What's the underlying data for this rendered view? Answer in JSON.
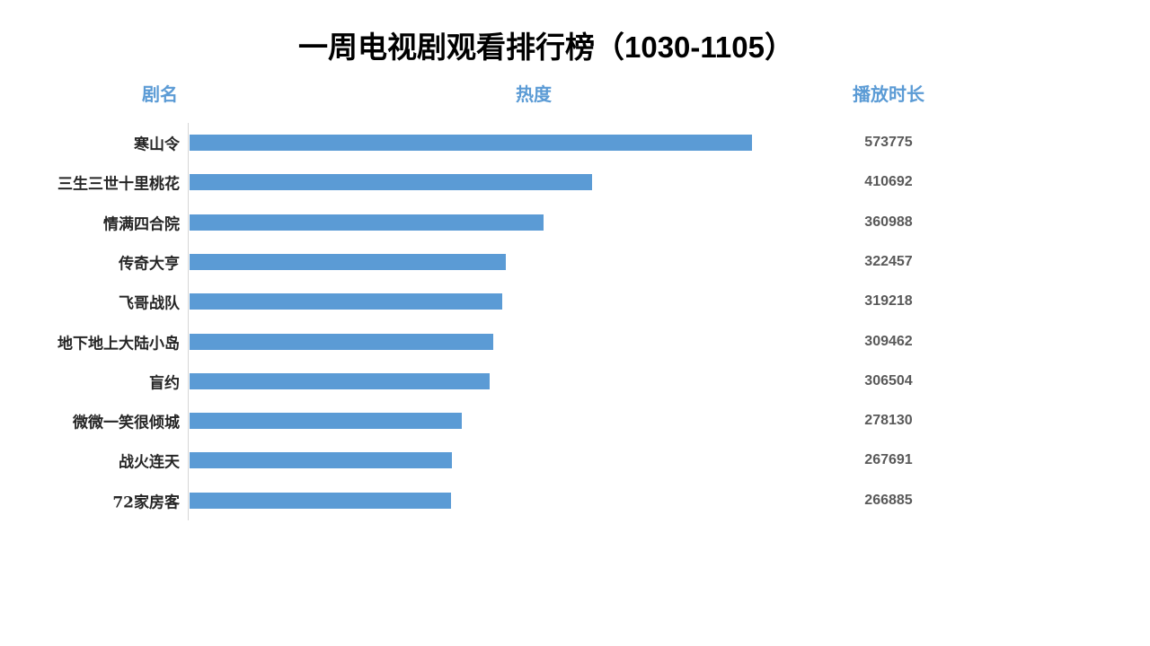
{
  "title": "一周电视剧观看排行榜（1030-1105）",
  "columns": {
    "name": "剧名",
    "heat": "热度",
    "duration": "播放时长"
  },
  "colors": {
    "bar": "#5B9BD5",
    "header_text": "#5B9BD5",
    "value_text": "#595959",
    "axis_line": "#D6D6D6",
    "title_text": "#000000",
    "background": "#FFFFFF"
  },
  "chart_data": {
    "type": "bar",
    "orientation": "horizontal",
    "title": "一周电视剧观看排行榜（1030-1105）",
    "xlabel": "热度",
    "ylabel": "剧名",
    "value_column_label": "播放时长",
    "grid": false,
    "legend": false,
    "xlim": [
      0,
      573775
    ],
    "categories": [
      "寒山令",
      "三生三世十里桃花",
      "情满四合院",
      "传奇大亨",
      "飞哥战队",
      "地下地上大陆小岛",
      "盲约",
      "微微一笑很倾城",
      "战火连天",
      "72家房客"
    ],
    "values": [
      573775,
      410692,
      360988,
      322457,
      319218,
      309462,
      306504,
      278130,
      267691,
      266885
    ]
  }
}
